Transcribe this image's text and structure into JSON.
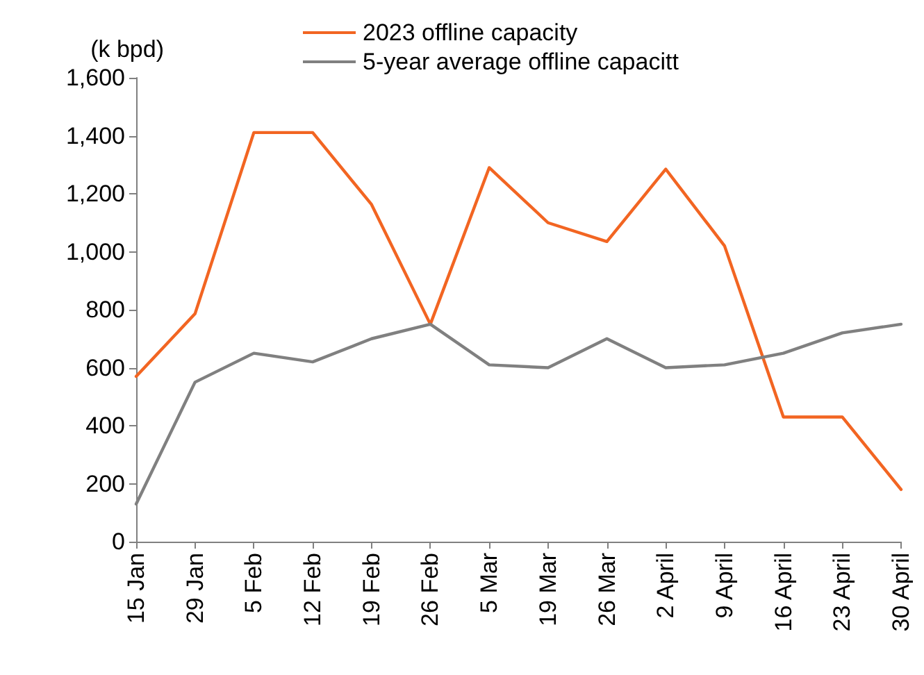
{
  "chart_data": {
    "type": "line",
    "ylabel": "(k bpd)",
    "categories": [
      "15 Jan",
      "29 Jan",
      "5 Feb",
      "12 Feb",
      "19 Feb",
      "26 Feb",
      "5 Mar",
      "19 Mar",
      "26 Mar",
      "2 April",
      "9 April",
      "16 April",
      "23 April",
      "30 April"
    ],
    "series": [
      {
        "name": "2023 offline capacity",
        "color": "#f26522",
        "values": [
          570,
          786,
          1411,
          1411,
          1163,
          750,
          1290,
          1100,
          1035,
          1285,
          1020,
          430,
          430,
          180
        ]
      },
      {
        "name": "5-year average offline capacitt",
        "color": "#808080",
        "values": [
          130,
          550,
          650,
          620,
          700,
          750,
          610,
          600,
          700,
          600,
          610,
          650,
          720,
          750
        ]
      }
    ],
    "ylim": [
      0,
      1600
    ],
    "yticks": [
      0,
      200,
      400,
      600,
      800,
      {
        "value": 1000,
        "label": "1,000"
      },
      {
        "value": 1200,
        "label": "1,200"
      },
      {
        "value": 1400,
        "label": "1,400"
      },
      {
        "value": 1600,
        "label": "1,600"
      }
    ],
    "grid": false,
    "legend": "top",
    "marker": "none",
    "line_style": "solid"
  }
}
